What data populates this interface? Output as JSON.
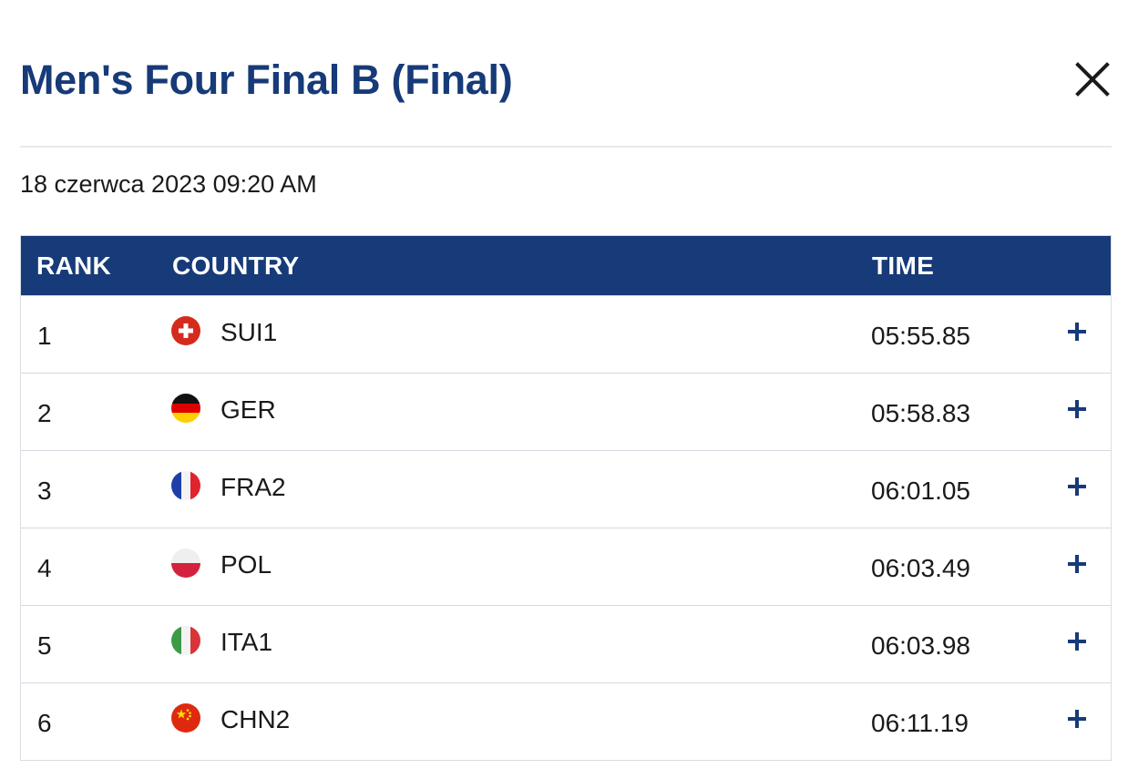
{
  "header": {
    "title": "Men's Four Final B (Final)",
    "close_icon": "close-icon"
  },
  "datetime": "18 czerwca 2023 09:20 AM",
  "table": {
    "columns": {
      "rank": "RANK",
      "country": "COUNTRY",
      "time": "TIME"
    },
    "rows": [
      {
        "rank": "1",
        "flag": "flag-switzerland-icon",
        "code": "SUI1",
        "time": "05:55.85",
        "expand_icon": "plus-icon"
      },
      {
        "rank": "2",
        "flag": "flag-germany-icon",
        "code": "GER",
        "time": "05:58.83",
        "expand_icon": "plus-icon"
      },
      {
        "rank": "3",
        "flag": "flag-france-icon",
        "code": "FRA2",
        "time": "06:01.05",
        "expand_icon": "plus-icon"
      },
      {
        "rank": "4",
        "flag": "flag-poland-icon",
        "code": "POL",
        "time": "06:03.49",
        "expand_icon": "plus-icon"
      },
      {
        "rank": "5",
        "flag": "flag-italy-icon",
        "code": "ITA1",
        "time": "06:03.98",
        "expand_icon": "plus-icon"
      },
      {
        "rank": "6",
        "flag": "flag-china-icon",
        "code": "CHN2",
        "time": "06:11.19",
        "expand_icon": "plus-icon"
      }
    ]
  },
  "colors": {
    "brand_navy": "#173a78",
    "header_text": "#ffffff",
    "divider": "#d4d9e0"
  }
}
